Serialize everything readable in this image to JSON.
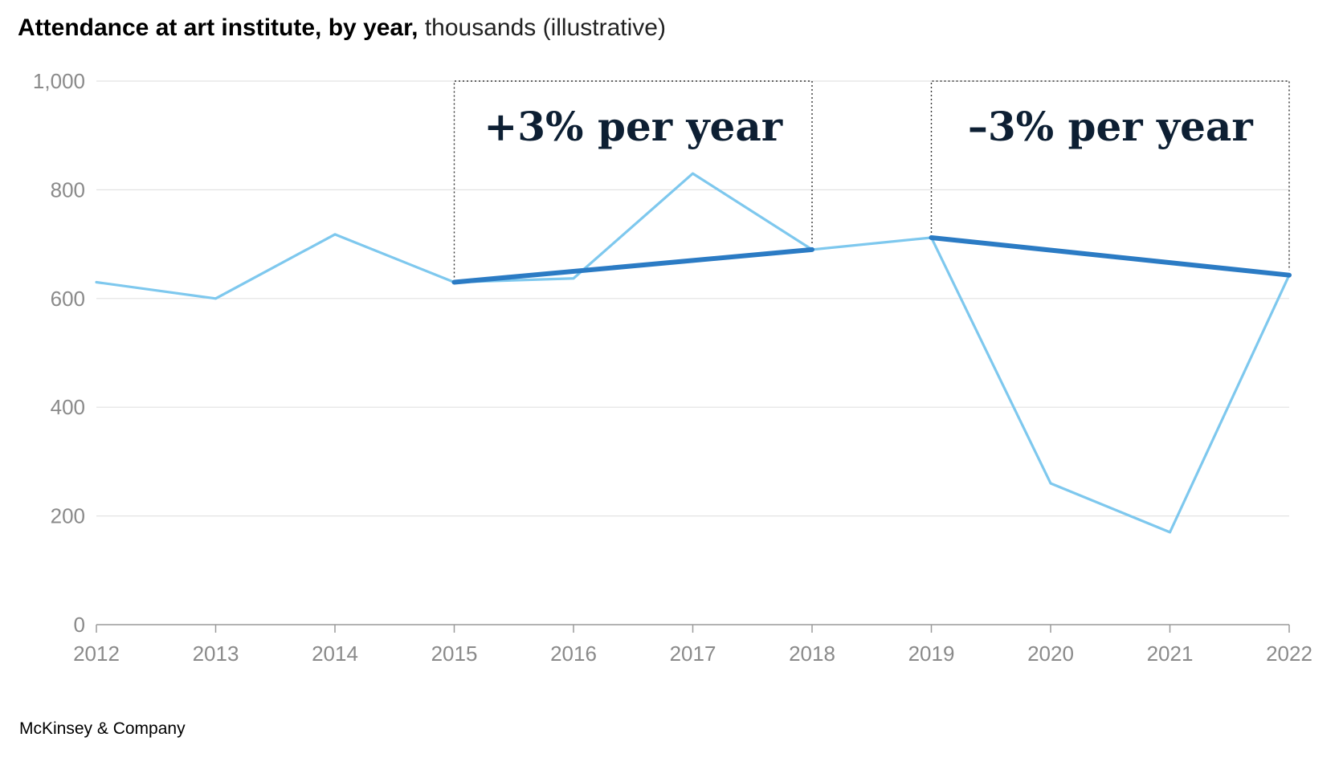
{
  "title": {
    "bold": "Attendance at art institute, by year,",
    "light": "thousands (illustrative)"
  },
  "footer": "McKinsey & Company",
  "colors": {
    "actual_line": "#7ec8ee",
    "trend_line": "#2b7bc4",
    "grid": "#e2e2e2",
    "axis": "#9a9a9a",
    "annotation_text": "#0d1f33"
  },
  "chart_data": {
    "type": "line",
    "x": [
      2012,
      2013,
      2014,
      2015,
      2016,
      2017,
      2018,
      2019,
      2020,
      2021,
      2022
    ],
    "ylim": [
      0,
      1000
    ],
    "yticks": [
      0,
      200,
      400,
      600,
      800,
      1000
    ],
    "ytick_labels": [
      "0",
      "200",
      "400",
      "600",
      "800",
      "1,000"
    ],
    "xtick_labels": [
      "2012",
      "2013",
      "2014",
      "2015",
      "2016",
      "2017",
      "2018",
      "2019",
      "2020",
      "2021",
      "2022"
    ],
    "grid": true,
    "series": [
      {
        "role": "actual",
        "x": [
          2012,
          2013,
          2014,
          2015,
          2016,
          2017,
          2018,
          2019,
          2020,
          2021,
          2022
        ],
        "values": [
          630,
          600,
          718,
          630,
          637,
          830,
          690,
          712,
          260,
          170,
          643
        ]
      },
      {
        "role": "trend",
        "x": [
          2015,
          2018
        ],
        "values": [
          630,
          690
        ]
      },
      {
        "role": "trend",
        "x": [
          2019,
          2022
        ],
        "values": [
          712,
          643
        ]
      }
    ],
    "annotations": [
      {
        "text": "+3% per year",
        "x_start": 2015,
        "x_end": 2018
      },
      {
        "text": "–3% per year",
        "x_start": 2019,
        "x_end": 2022
      }
    ]
  }
}
